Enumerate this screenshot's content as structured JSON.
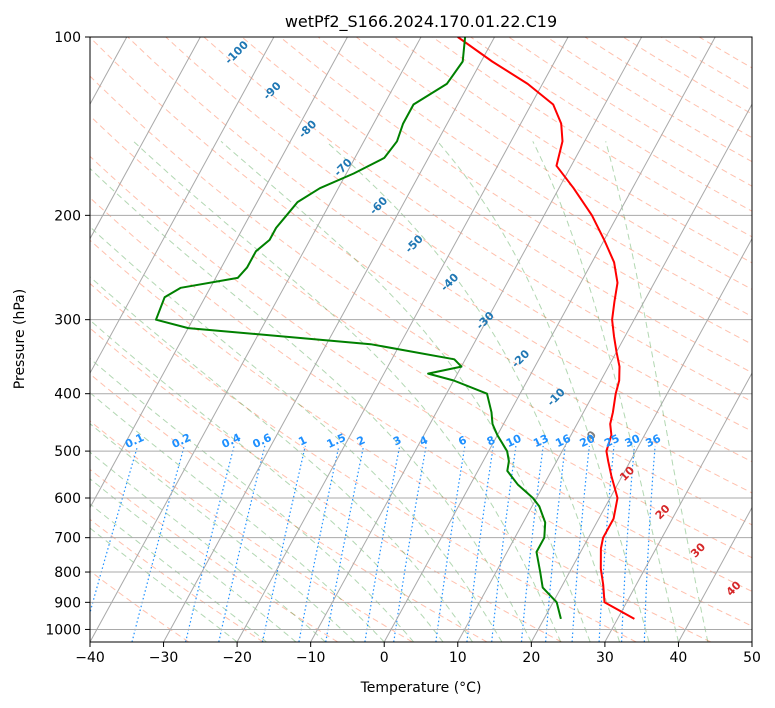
{
  "chart_data": {
    "type": "line",
    "title": "wetPf2_S166.2024.170.01.22.C19",
    "xlabel": "Temperature (°C)",
    "ylabel": "Pressure (hPa)",
    "xlim": [
      -40,
      50
    ],
    "ylim": [
      1050,
      100
    ],
    "y_scale": "log",
    "grid": true,
    "x_ticks": [
      -40,
      -30,
      -20,
      -10,
      0,
      10,
      20,
      30,
      40,
      50
    ],
    "y_ticks": [
      1000,
      900,
      800,
      700,
      600,
      500,
      400,
      300,
      200,
      100
    ],
    "skew_factor": 45,
    "series": [
      {
        "color": "#ff0000",
        "points": [
          [
            32.3,
            960
          ],
          [
            27.0,
            900
          ],
          [
            25.5,
            840
          ],
          [
            24.0,
            790
          ],
          [
            22.5,
            730
          ],
          [
            22.0,
            700
          ],
          [
            22.0,
            650
          ],
          [
            21.0,
            600
          ],
          [
            18.5,
            550
          ],
          [
            17.0,
            520
          ],
          [
            16.0,
            500
          ],
          [
            15.5,
            470
          ],
          [
            14.5,
            450
          ],
          [
            14.0,
            430
          ],
          [
            13.0,
            400
          ],
          [
            12.5,
            380
          ],
          [
            11.5,
            360
          ],
          [
            10.0,
            340
          ],
          [
            8.5,
            320
          ],
          [
            7.0,
            300
          ],
          [
            6.0,
            280
          ],
          [
            5.0,
            260
          ],
          [
            3.0,
            240
          ],
          [
            0.0,
            220
          ],
          [
            -3.5,
            200
          ],
          [
            -8.0,
            180
          ],
          [
            -12.0,
            165
          ],
          [
            -13.0,
            150
          ],
          [
            -14.5,
            140
          ],
          [
            -17.0,
            130
          ],
          [
            -22.0,
            120
          ],
          [
            -28.5,
            110
          ],
          [
            -35.0,
            100
          ]
        ]
      },
      {
        "color": "#008000",
        "points": [
          [
            22.3,
            960
          ],
          [
            20.5,
            900
          ],
          [
            17.5,
            850
          ],
          [
            16.0,
            800
          ],
          [
            14.0,
            740
          ],
          [
            14.0,
            700
          ],
          [
            13.0,
            660
          ],
          [
            11.0,
            620
          ],
          [
            9.5,
            600
          ],
          [
            6.5,
            570
          ],
          [
            4.0,
            540
          ],
          [
            3.5,
            520
          ],
          [
            2.5,
            500
          ],
          [
            0.0,
            470
          ],
          [
            -1.5,
            450
          ],
          [
            -2.5,
            430
          ],
          [
            -4.5,
            400
          ],
          [
            -10.0,
            380
          ],
          [
            -14.0,
            370
          ],
          [
            -10.0,
            360
          ],
          [
            -11.5,
            350
          ],
          [
            -24.0,
            330
          ],
          [
            -50.0,
            310
          ],
          [
            -55.0,
            300
          ],
          [
            -55.5,
            275
          ],
          [
            -54.0,
            265
          ],
          [
            -47.0,
            255
          ],
          [
            -46.5,
            245
          ],
          [
            -46.5,
            230
          ],
          [
            -45.5,
            220
          ],
          [
            -45.5,
            210
          ],
          [
            -45.0,
            200
          ],
          [
            -44.5,
            190
          ],
          [
            -42.5,
            180
          ],
          [
            -39.0,
            170
          ],
          [
            -36.0,
            160
          ],
          [
            -35.5,
            150
          ],
          [
            -36.0,
            140
          ],
          [
            -36.0,
            130
          ],
          [
            -33.0,
            120
          ],
          [
            -32.5,
            110
          ],
          [
            -34.0,
            100
          ]
        ]
      }
    ],
    "dry_adiabat_labels": [
      "-100",
      "-90",
      "-80",
      "-70",
      "-60",
      "-50",
      "-40",
      "-30",
      "-20",
      "-10",
      "0",
      "10",
      "20",
      "30",
      "40"
    ],
    "mixing_ratio_labels": [
      "0.1",
      "0.2",
      "0.4",
      "0.6",
      "1",
      "1.5",
      "2",
      "3",
      "4",
      "6",
      "8",
      "10",
      "13",
      "16",
      "20",
      "25",
      "30",
      "36"
    ],
    "colors": {
      "isotherm": "#a9a9a9",
      "isobar": "#a9a9a9",
      "dry_adiabat": "#ff8c69",
      "moist_adiabat": "#228b22",
      "mixing_ratio": "#1e90ff",
      "dry_adiabat_label_cold": "#1f77b4",
      "dry_adiabat_label_warm": "#d62728",
      "zero_label": "#7f7f7f"
    }
  }
}
